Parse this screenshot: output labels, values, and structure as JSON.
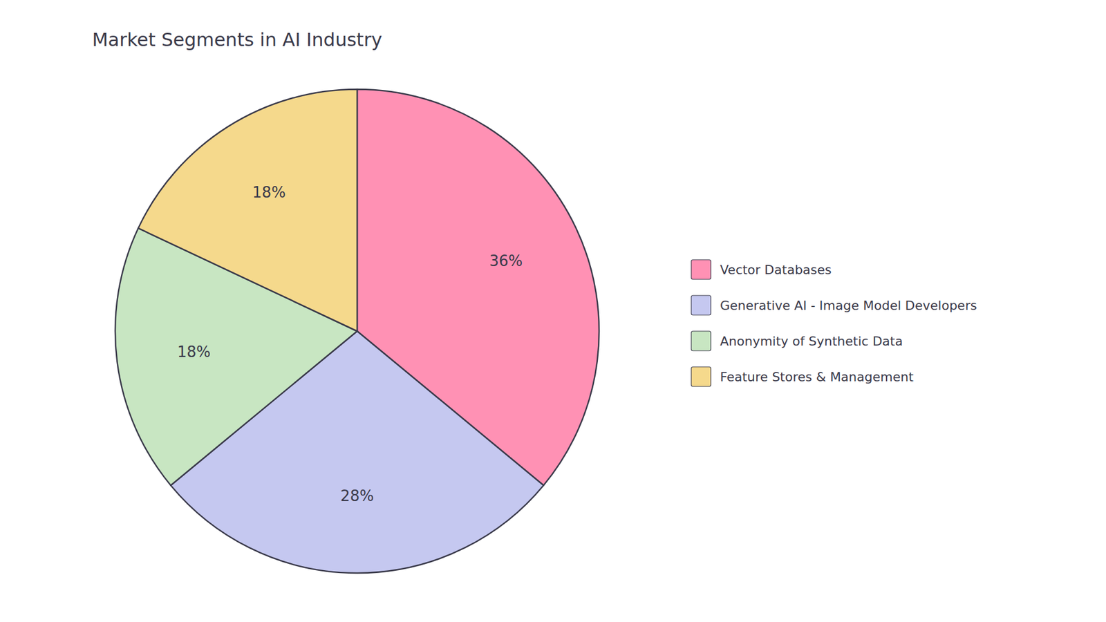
{
  "chart_data": {
    "type": "pie",
    "title": "Market Segments in AI Industry",
    "categories": [
      "Vector Databases",
      "Generative AI - Image Model Developers",
      "Anonymity of Synthetic Data",
      "Feature Stores & Management"
    ],
    "values": [
      36,
      28,
      18,
      18
    ],
    "value_labels": [
      "36%",
      "28%",
      "18%",
      "18%"
    ],
    "colors": [
      "#FF91B4",
      "#C5C8F0",
      "#C8E6C2",
      "#F5D98C"
    ],
    "data_labels": true,
    "legend": "right"
  }
}
